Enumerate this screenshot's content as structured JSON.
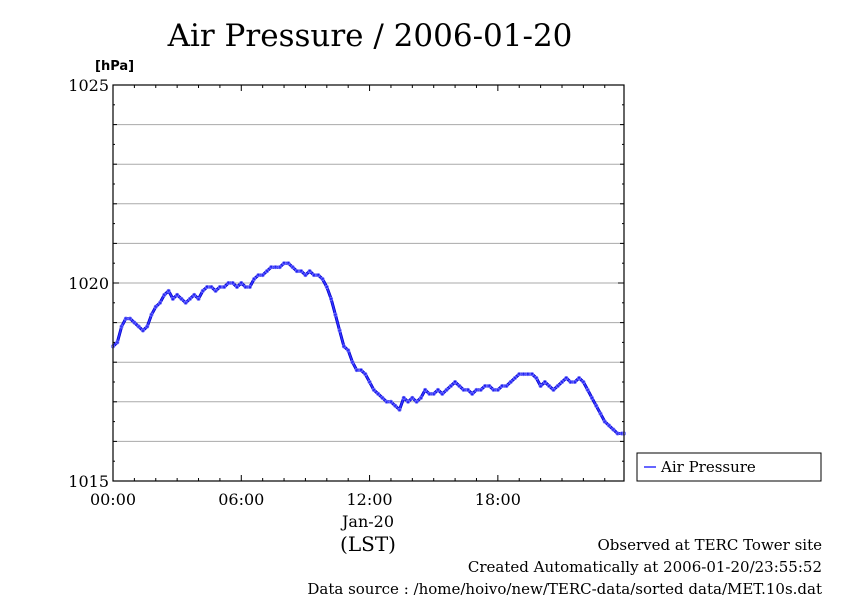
{
  "chart_data": {
    "type": "line",
    "title": "Air Pressure / 2006-01-20",
    "ylabel": "[hPa]",
    "xlabel": "(LST)",
    "x_date_label": "Jan-20",
    "ylim": [
      1015,
      1025
    ],
    "xlim": [
      0,
      23.9
    ],
    "yticks": [
      "1015",
      "1020",
      "1025"
    ],
    "xticks": [
      {
        "x": 0,
        "label": "00:00"
      },
      {
        "x": 6,
        "label": "06:00"
      },
      {
        "x": 12,
        "label": "12:00"
      },
      {
        "x": 18,
        "label": "18:00"
      }
    ],
    "grid": true,
    "legend_position": "right",
    "series": [
      {
        "name": "Air Pressure",
        "color": "#3333ff",
        "x": [
          0,
          0.2,
          0.4,
          0.6,
          0.8,
          1.0,
          1.2,
          1.4,
          1.6,
          1.8,
          2.0,
          2.2,
          2.4,
          2.6,
          2.8,
          3.0,
          3.2,
          3.4,
          3.6,
          3.8,
          4.0,
          4.2,
          4.4,
          4.6,
          4.8,
          5.0,
          5.2,
          5.4,
          5.6,
          5.8,
          6.0,
          6.2,
          6.4,
          6.6,
          6.8,
          7.0,
          7.2,
          7.4,
          7.6,
          7.8,
          8.0,
          8.2,
          8.4,
          8.6,
          8.8,
          9.0,
          9.2,
          9.4,
          9.6,
          9.8,
          10.0,
          10.2,
          10.4,
          10.6,
          10.8,
          11.0,
          11.2,
          11.4,
          11.6,
          11.8,
          12.0,
          12.2,
          12.4,
          12.6,
          12.8,
          13.0,
          13.2,
          13.4,
          13.6,
          13.8,
          14.0,
          14.2,
          14.4,
          14.6,
          14.8,
          15.0,
          15.2,
          15.4,
          15.6,
          15.8,
          16.0,
          16.2,
          16.4,
          16.6,
          16.8,
          17.0,
          17.2,
          17.4,
          17.6,
          17.8,
          18.0,
          18.2,
          18.4,
          18.6,
          18.8,
          19.0,
          19.2,
          19.4,
          19.6,
          19.8,
          20.0,
          20.2,
          20.4,
          20.6,
          20.8,
          21.0,
          21.2,
          21.4,
          21.6,
          21.8,
          22.0,
          22.2,
          22.4,
          22.6,
          22.8,
          23.0,
          23.2,
          23.4,
          23.6,
          23.8,
          23.9
        ],
        "values": [
          1018.4,
          1018.5,
          1018.9,
          1019.1,
          1019.1,
          1019.0,
          1018.9,
          1018.8,
          1018.9,
          1019.2,
          1019.4,
          1019.5,
          1019.7,
          1019.8,
          1019.6,
          1019.7,
          1019.6,
          1019.5,
          1019.6,
          1019.7,
          1019.6,
          1019.8,
          1019.9,
          1019.9,
          1019.8,
          1019.9,
          1019.9,
          1020.0,
          1020.0,
          1019.9,
          1020.0,
          1019.9,
          1019.9,
          1020.1,
          1020.2,
          1020.2,
          1020.3,
          1020.4,
          1020.4,
          1020.4,
          1020.5,
          1020.5,
          1020.4,
          1020.3,
          1020.3,
          1020.2,
          1020.3,
          1020.2,
          1020.2,
          1020.1,
          1019.9,
          1019.6,
          1019.2,
          1018.8,
          1018.4,
          1018.3,
          1018.0,
          1017.8,
          1017.8,
          1017.7,
          1017.5,
          1017.3,
          1017.2,
          1017.1,
          1017.0,
          1017.0,
          1016.9,
          1016.8,
          1017.1,
          1017.0,
          1017.1,
          1017.0,
          1017.1,
          1017.3,
          1017.2,
          1017.2,
          1017.3,
          1017.2,
          1017.3,
          1017.4,
          1017.5,
          1017.4,
          1017.3,
          1017.3,
          1017.2,
          1017.3,
          1017.3,
          1017.4,
          1017.4,
          1017.3,
          1017.3,
          1017.4,
          1017.4,
          1017.5,
          1017.6,
          1017.7,
          1017.7,
          1017.7,
          1017.7,
          1017.6,
          1017.4,
          1017.5,
          1017.4,
          1017.3,
          1017.4,
          1017.5,
          1017.6,
          1017.5,
          1017.5,
          1017.6,
          1017.5,
          1017.3,
          1017.1,
          1016.9,
          1016.7,
          1016.5,
          1016.4,
          1016.3,
          1016.2,
          1016.2,
          1016.2
        ]
      }
    ]
  },
  "footer": {
    "line1": "Observed at TERC Tower site",
    "line2": "Created Automatically at 2006-01-20/23:55:52",
    "line3": "Data source : /home/hoivo/new/TERC-data/sorted  data/MET.10s.dat"
  }
}
